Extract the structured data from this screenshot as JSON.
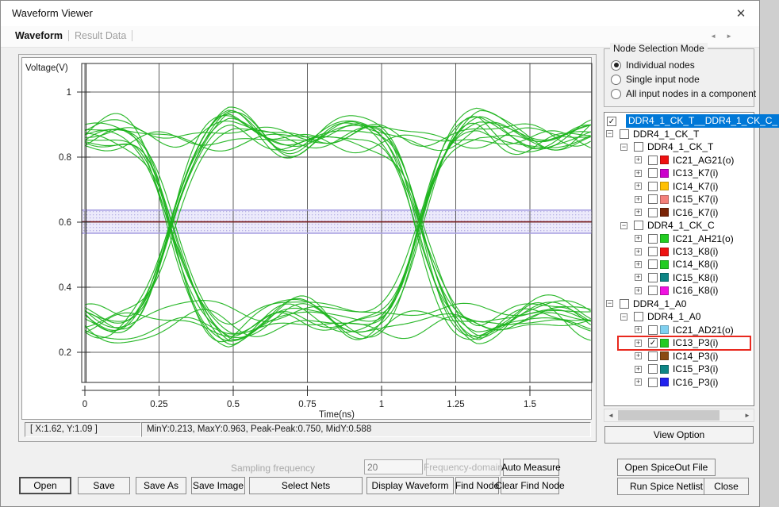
{
  "window": {
    "title": "Waveform Viewer",
    "close_icon": "✕"
  },
  "tabs": {
    "active": "Waveform",
    "inactive": "Result Data"
  },
  "tab_scroll": {
    "left": "◄",
    "right": "►"
  },
  "icons": {
    "check": "✓",
    "plus": "+",
    "minus": "−",
    "scroll_left": "◄",
    "scroll_right": "►"
  },
  "colors": {
    "selection_blue": "#0078d7",
    "trace_green": "#1db41d",
    "find_outline_red": "#e8281e"
  },
  "chart_data": {
    "type": "line",
    "subtype": "eye-diagram",
    "title": "",
    "xlabel": "Time(ns)",
    "ylabel": "Voltage(V)",
    "x_ticks": [
      0,
      0.25,
      0.5,
      0.75,
      1,
      1.25,
      1.5
    ],
    "x_tick_labels": [
      "0",
      "0.25",
      "0.5",
      "0.75",
      "1",
      "1.25",
      "1.5"
    ],
    "y_ticks": [
      0.2,
      0.4,
      0.6,
      0.8,
      1
    ],
    "y_tick_labels": [
      "0.2",
      "0.4",
      "0.6",
      "0.8",
      "1"
    ],
    "xlim": [
      0,
      1.71
    ],
    "ylim": [
      0.08,
      1.09
    ],
    "grid": true,
    "grid_color": "#5f5f5f",
    "trace_color": "#1db41d",
    "eye": {
      "num_traces": 26,
      "high_level": 0.872,
      "low_level": 0.302,
      "crossing_times_ns": [
        0.29,
        1.13
      ],
      "crossing_voltage": 0.59,
      "unit_interval_ns": 0.84,
      "overshoot_max_v": 0.963,
      "undershoot_min_v": 0.213,
      "edge_width_ns": 0.095,
      "ripple": [
        [
          0.016,
          0.44
        ],
        [
          0.011,
          0.27
        ],
        [
          0.007,
          0.9
        ]
      ],
      "ring_amp": 0.085,
      "ring_period_ns": 0.5,
      "ring_decay_ns": 0.5
    },
    "reference_band": {
      "v_top": 0.637,
      "v_bottom": 0.566,
      "fill": "#eceafb",
      "dot_color": "#b9b2e6",
      "border_color": "#a9a1e2",
      "line_v": 0.601,
      "line_color": "#7c1f1f"
    },
    "measurements": {
      "MinY": 0.213,
      "MaxY": 0.963,
      "Peak-Peak": 0.75,
      "MidY": 0.588
    }
  },
  "status": {
    "cursor": "[ X:1.62, Y:1.09 ]",
    "measure": "MinY:0.213, MaxY:0.963, Peak-Peak:0.750, MidY:0.588"
  },
  "node_selection": {
    "title": "Node Selection Mode",
    "options": [
      {
        "label": "Individual nodes",
        "selected": true
      },
      {
        "label": "Single input node",
        "selected": false
      },
      {
        "label": "All input nodes in a component",
        "selected": false
      }
    ]
  },
  "tree": {
    "items": [
      {
        "label": "DDR4_1_CK_T__DDR4_1_CK_C_",
        "level": 0,
        "expand": "none",
        "checked": true,
        "selected": true
      },
      {
        "label": "DDR4_1_CK_T",
        "level": 1,
        "expand": "minus",
        "checked": false
      },
      {
        "label": "DDR4_1_CK_T",
        "level": 2,
        "expand": "minus",
        "checked": false
      },
      {
        "label": "IC21_AG21(o)",
        "level": 3,
        "expand": "plus",
        "checked": false,
        "color": "#ee1111"
      },
      {
        "label": "IC13_K7(i)",
        "level": 3,
        "expand": "plus",
        "checked": false,
        "color": "#cc00cc"
      },
      {
        "label": "IC14_K7(i)",
        "level": 3,
        "expand": "plus",
        "checked": false,
        "color": "#ffc000"
      },
      {
        "label": "IC15_K7(i)",
        "level": 3,
        "expand": "plus",
        "checked": false,
        "color": "#f4807a"
      },
      {
        "label": "IC16_K7(i)",
        "level": 3,
        "expand": "plus",
        "checked": false,
        "color": "#7a2406"
      },
      {
        "label": "DDR4_1_CK_C",
        "level": 2,
        "expand": "minus",
        "checked": false
      },
      {
        "label": "IC21_AH21(o)",
        "level": 3,
        "expand": "plus",
        "checked": false,
        "color": "#22cc22"
      },
      {
        "label": "IC13_K8(i)",
        "level": 3,
        "expand": "plus",
        "checked": false,
        "color": "#ee1111"
      },
      {
        "label": "IC14_K8(i)",
        "level": 3,
        "expand": "plus",
        "checked": false,
        "color": "#22cc22"
      },
      {
        "label": "IC15_K8(i)",
        "level": 3,
        "expand": "plus",
        "checked": false,
        "color": "#0e8686"
      },
      {
        "label": "IC16_K8(i)",
        "level": 3,
        "expand": "plus",
        "checked": false,
        "color": "#f011e0"
      },
      {
        "label": "DDR4_1_A0",
        "level": 1,
        "expand": "minus",
        "checked": false
      },
      {
        "label": "DDR4_1_A0",
        "level": 2,
        "expand": "minus",
        "checked": false
      },
      {
        "label": "IC21_AD21(o)",
        "level": 3,
        "expand": "plus",
        "checked": false,
        "color": "#7fd0f0"
      },
      {
        "label": "IC13_P3(i)",
        "level": 3,
        "expand": "plus",
        "checked": true,
        "color": "#22cc22",
        "find_highlight": true
      },
      {
        "label": "IC14_P3(i)",
        "level": 3,
        "expand": "plus",
        "checked": false,
        "color": "#8a4a12"
      },
      {
        "label": "IC15_P3(i)",
        "level": 3,
        "expand": "plus",
        "checked": false,
        "color": "#0e8686"
      },
      {
        "label": "IC16_P3(i)",
        "level": 3,
        "expand": "plus",
        "checked": false,
        "color": "#2222ee"
      }
    ]
  },
  "view_option_label": "View Option",
  "bottom": {
    "sampling_label": "Sampling frequency",
    "sampling_value": "20",
    "freq_domain": "Frequency-domain",
    "auto_measure": "Auto Measure",
    "open": "Open",
    "save": "Save",
    "save_as": "Save As",
    "save_image": "Save Image",
    "select_nets": "Select Nets",
    "display_waveform": "Display Waveform",
    "find_node": "Find Node",
    "clear_find_node": "Clear Find Node",
    "open_spiceout": "Open SpiceOut File",
    "run_spice": "Run Spice Netlist",
    "close": "Close"
  }
}
